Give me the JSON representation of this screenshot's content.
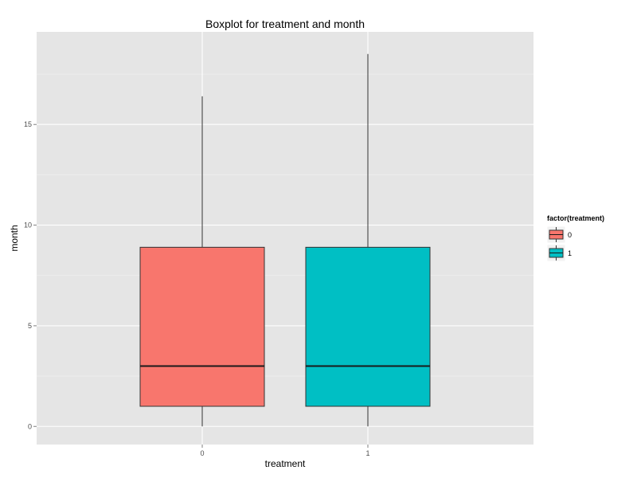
{
  "chart_data": {
    "type": "boxplot",
    "title": "Boxplot for treatment and month",
    "xlabel": "treatment",
    "ylabel": "month",
    "categories": [
      "0",
      "1"
    ],
    "ylim": [
      -0.9,
      19.6
    ],
    "yticks": [
      0,
      5,
      10,
      15
    ],
    "y_tick_labels": [
      "0",
      "5",
      "10",
      "15"
    ],
    "grid": true,
    "boxes": [
      {
        "category": "0",
        "min": 0,
        "q1": 1,
        "median": 3,
        "q3": 8.9,
        "max": 16.4,
        "color": "#F8766D"
      },
      {
        "category": "1",
        "min": 0,
        "q1": 1,
        "median": 3,
        "q3": 8.9,
        "max": 18.5,
        "color": "#00BFC4"
      }
    ],
    "legend": {
      "title": "factor(treatment)",
      "position": "right",
      "items": [
        {
          "label": "0",
          "color": "#F8766D"
        },
        {
          "label": "1",
          "color": "#00BFC4"
        }
      ]
    },
    "panel_background": "#E5E5E5"
  }
}
